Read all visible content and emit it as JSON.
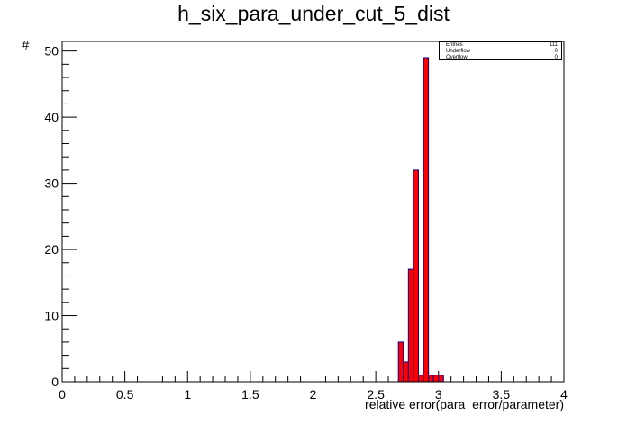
{
  "title": "h_six_para_under_cut_5_dist",
  "stats": [
    {
      "label": "Entries",
      "value": "111"
    },
    {
      "label": "Underflow",
      "value": "0"
    },
    {
      "label": "Overflow",
      "value": "0"
    }
  ],
  "chart_data": {
    "type": "bar",
    "title": "h_six_para_under_cut_5_dist",
    "xlabel": "relative error(para_error/parameter)",
    "ylabel": "#",
    "xlim": [
      0,
      4
    ],
    "ylim": [
      0,
      51.45
    ],
    "x_ticks": [
      "0",
      "0.5",
      "1",
      "1.5",
      "2",
      "2.5",
      "3",
      "3.5",
      "4"
    ],
    "y_ticks": [
      "0",
      "10",
      "20",
      "30",
      "40",
      "50"
    ],
    "bin_width": 0.04,
    "bins": [
      {
        "x_low": 2.68,
        "x_high": 2.72,
        "value": 6
      },
      {
        "x_low": 2.72,
        "x_high": 2.76,
        "value": 3
      },
      {
        "x_low": 2.76,
        "x_high": 2.8,
        "value": 17
      },
      {
        "x_low": 2.8,
        "x_high": 2.84,
        "value": 32
      },
      {
        "x_low": 2.84,
        "x_high": 2.88,
        "value": 1
      },
      {
        "x_low": 2.88,
        "x_high": 2.92,
        "value": 49
      },
      {
        "x_low": 2.92,
        "x_high": 2.96,
        "value": 1
      },
      {
        "x_low": 2.96,
        "x_high": 3.0,
        "value": 1
      },
      {
        "x_low": 3.0,
        "x_high": 3.04,
        "value": 1
      }
    ],
    "fill_color": "#ff0000",
    "line_color": "#000099",
    "grid": false,
    "legend": "top-right"
  }
}
